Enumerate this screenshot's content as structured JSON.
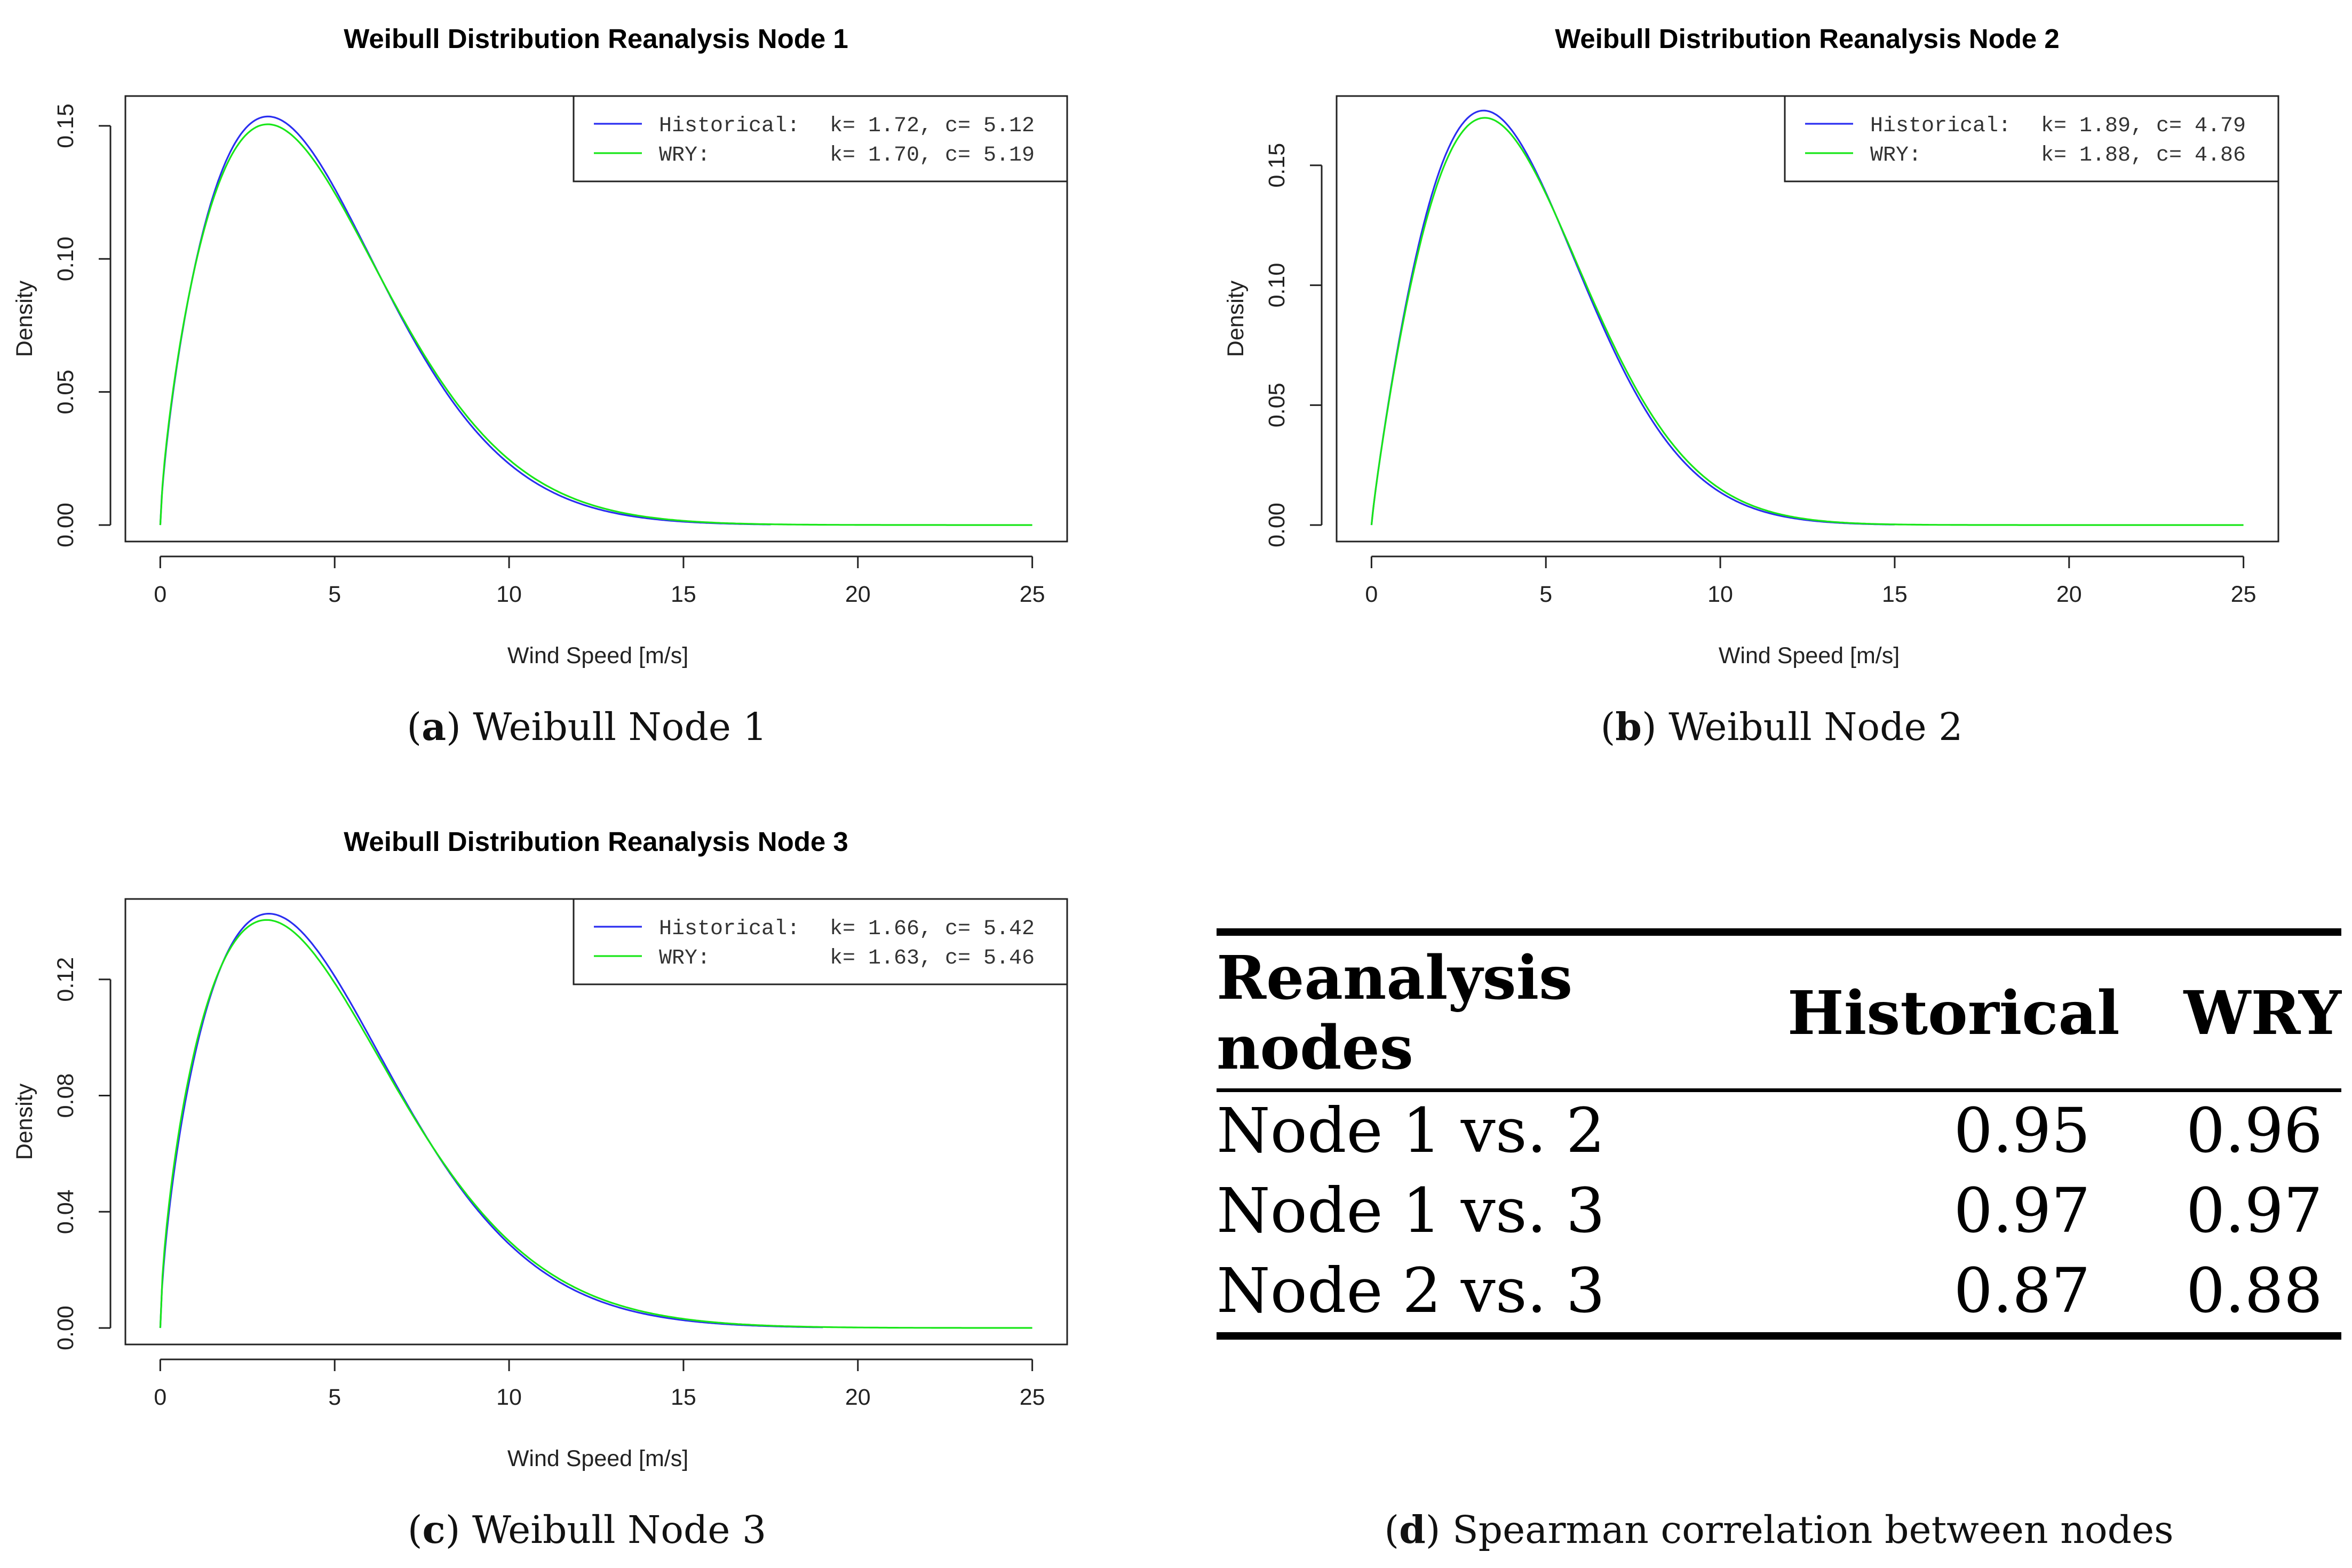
{
  "colors": {
    "historical": "#2a2ef0",
    "wry": "#19e619",
    "axis": "#222222"
  },
  "chart_data": [
    {
      "type": "line",
      "title": "Weibull Distribution Reanalysis Node 1",
      "xlabel": "Wind Speed [m/s]",
      "ylabel": "Density",
      "xlim": [
        0,
        25
      ],
      "ylim": [
        0,
        0.155
      ],
      "x_ticks": [
        0,
        5,
        10,
        15,
        20,
        25
      ],
      "x_tick_labels": [
        "0",
        "5",
        "10",
        "15",
        "20",
        "25"
      ],
      "y_ticks": [
        0,
        0.05,
        0.1,
        0.15
      ],
      "y_tick_labels": [
        "0.00",
        "0.05",
        "0.10",
        "0.15"
      ],
      "legend_position": "top-right",
      "series": [
        {
          "name": "Historical",
          "k": 1.72,
          "c": 5.12,
          "legend_name": "Historical:",
          "legend_params": "k= 1.72, c= 5.12",
          "x_end": 17.5
        },
        {
          "name": "WRY",
          "k": 1.7,
          "c": 5.19,
          "legend_name": "WRY:",
          "legend_params": "k= 1.70, c= 5.19",
          "x_end": 25
        }
      ],
      "caption_letter": "a",
      "caption_text": "Weibull Node 1"
    },
    {
      "type": "line",
      "title": "Weibull Distribution Reanalysis Node 2",
      "xlabel": "Wind Speed [m/s]",
      "ylabel": "Density",
      "xlim": [
        0,
        25
      ],
      "ylim": [
        0,
        0.172
      ],
      "x_ticks": [
        0,
        5,
        10,
        15,
        20,
        25
      ],
      "x_tick_labels": [
        "0",
        "5",
        "10",
        "15",
        "20",
        "25"
      ],
      "y_ticks": [
        0,
        0.05,
        0.1,
        0.15
      ],
      "y_tick_labels": [
        "0.00",
        "0.05",
        "0.10",
        "0.15"
      ],
      "legend_position": "top-right",
      "series": [
        {
          "name": "Historical",
          "k": 1.89,
          "c": 4.79,
          "legend_name": "Historical:",
          "legend_params": "k= 1.89, c= 4.79",
          "x_end": 15
        },
        {
          "name": "WRY",
          "k": 1.88,
          "c": 4.86,
          "legend_name": "WRY:",
          "legend_params": "k= 1.88, c= 4.86",
          "x_end": 25
        }
      ],
      "caption_letter": "b",
      "caption_text": "Weibull Node 2"
    },
    {
      "type": "line",
      "title": "Weibull Distribution Reanalysis Node 3",
      "xlabel": "Wind Speed [m/s]",
      "ylabel": "Density",
      "xlim": [
        0,
        25
      ],
      "ylim": [
        0,
        0.142
      ],
      "x_ticks": [
        0,
        5,
        10,
        15,
        20,
        25
      ],
      "x_tick_labels": [
        "0",
        "5",
        "10",
        "15",
        "20",
        "25"
      ],
      "y_ticks": [
        0,
        0.04,
        0.08,
        0.12
      ],
      "y_tick_labels": [
        "0.00",
        "0.04",
        "0.08",
        "0.12"
      ],
      "legend_position": "top-right",
      "series": [
        {
          "name": "Historical",
          "k": 1.66,
          "c": 5.42,
          "legend_name": "Historical:",
          "legend_params": "k= 1.66, c= 5.42",
          "x_end": 19
        },
        {
          "name": "WRY",
          "k": 1.63,
          "c": 5.46,
          "legend_name": "WRY:",
          "legend_params": "k= 1.63, c= 5.46",
          "x_end": 25
        }
      ],
      "caption_letter": "c",
      "caption_text": "Weibull Node 3"
    }
  ],
  "table": {
    "headers": [
      "Reanalysis nodes",
      "Historical",
      "WRY"
    ],
    "rows": [
      [
        "Node 1 vs. 2",
        "0.95",
        "0.96"
      ],
      [
        "Node 1 vs. 3",
        "0.97",
        "0.97"
      ],
      [
        "Node 2 vs. 3",
        "0.87",
        "0.88"
      ]
    ],
    "caption_letter": "d",
    "caption_text": "Spearman correlation between nodes"
  }
}
